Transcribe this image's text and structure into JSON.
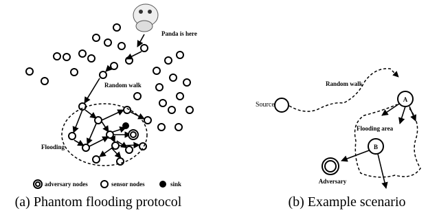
{
  "left": {
    "panda_label": "Panda is here",
    "random_walk_label": "Random walk",
    "flooding_label": "Flooding",
    "legend": {
      "adversary": "adversary nodes",
      "sensor": "sensor nodes",
      "sink": "sink"
    },
    "caption": "(a) Phantom flooding protocol"
  },
  "right": {
    "source_label": "Source",
    "random_walk_label": "Random walk",
    "node_a": "A",
    "flooding_area_label": "Flooding area",
    "node_b": "B",
    "adversary_label": "Adversary",
    "caption": "(b) Example scenario"
  }
}
